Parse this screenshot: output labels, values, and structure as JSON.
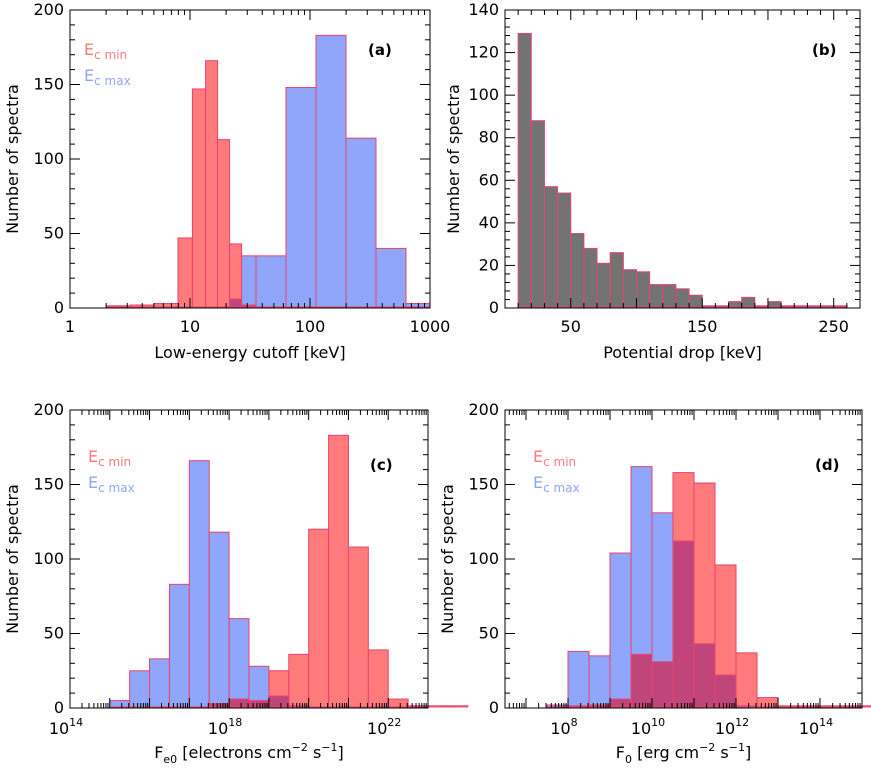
{
  "colors": {
    "red_fill": "#ff7b7b",
    "red_edge": "#e8436f",
    "blue_fill": "#8fa6fa",
    "overlap_fill": "#c0457a",
    "gray_fill": "#737373",
    "axis": "#000000"
  },
  "chart_data": [
    {
      "id": "a",
      "type": "histogram",
      "label": "(a)",
      "xscale": "log",
      "xlim_log10": [
        0,
        3
      ],
      "ylim": [
        0,
        200
      ],
      "xlabel": "Low-energy cutoff [keV]",
      "ylabel": "Number of spectra",
      "xticks": [
        {
          "v": 0,
          "label": "1"
        },
        {
          "v": 1,
          "label": "10"
        },
        {
          "v": 2,
          "label": "100"
        },
        {
          "v": 3,
          "label": "1000"
        }
      ],
      "yticks": [
        {
          "v": 0,
          "label": "0"
        },
        {
          "v": 50,
          "label": "50"
        },
        {
          "v": 100,
          "label": "100"
        },
        {
          "v": 150,
          "label": "150"
        },
        {
          "v": 200,
          "label": "200"
        }
      ],
      "legend": {
        "position": "top-left",
        "entries": [
          {
            "main": "E",
            "sub": "c min",
            "series": 0
          },
          {
            "main": "E",
            "sub": "c max",
            "series": 1
          }
        ]
      },
      "series": [
        {
          "name": "Ec min",
          "color_key": "red",
          "bins": [
            [
              0.3,
              0.5,
              1
            ],
            [
              0.5,
              0.7,
              2
            ],
            [
              0.7,
              0.9,
              3
            ],
            [
              0.9,
              1.02,
              47
            ],
            [
              1.02,
              1.13,
              147
            ],
            [
              1.13,
              1.23,
              166
            ],
            [
              1.23,
              1.33,
              113
            ],
            [
              1.33,
              1.43,
              43
            ],
            [
              1.43,
              1.55,
              2
            ]
          ]
        },
        {
          "name": "Ec max",
          "color_key": "blue",
          "bins": [
            [
              1.33,
              1.43,
              6
            ],
            [
              1.43,
              1.55,
              35
            ],
            [
              1.55,
              1.8,
              35
            ],
            [
              1.8,
              2.05,
              148
            ],
            [
              2.05,
              2.3,
              183
            ],
            [
              2.3,
              2.55,
              114
            ],
            [
              2.55,
              2.8,
              40
            ],
            [
              2.8,
              3.0,
              3
            ]
          ]
        }
      ]
    },
    {
      "id": "b",
      "type": "histogram",
      "label": "(b)",
      "xscale": "linear",
      "xlim": [
        0,
        270
      ],
      "ylim": [
        0,
        140
      ],
      "xlabel": "Potential drop [keV]",
      "ylabel": "Number of spectra",
      "xticks": [
        {
          "v": 50,
          "label": "50"
        },
        {
          "v": 150,
          "label": "150"
        },
        {
          "v": 250,
          "label": "250"
        }
      ],
      "yticks": [
        {
          "v": 0,
          "label": "0"
        },
        {
          "v": 20,
          "label": "20"
        },
        {
          "v": 40,
          "label": "40"
        },
        {
          "v": 60,
          "label": "60"
        },
        {
          "v": 80,
          "label": "80"
        },
        {
          "v": 100,
          "label": "100"
        },
        {
          "v": 120,
          "label": "120"
        },
        {
          "v": 140,
          "label": "140"
        }
      ],
      "series": [
        {
          "name": "Potential drop",
          "color_key": "gray",
          "bin_start": 10,
          "bin_width": 10,
          "values": [
            129,
            88,
            57,
            54,
            35,
            28,
            21,
            26,
            18,
            17,
            11,
            11,
            9,
            6,
            1,
            1,
            3,
            5,
            0,
            3,
            1,
            1,
            1,
            0,
            1
          ]
        }
      ]
    },
    {
      "id": "c",
      "type": "histogram",
      "label": "(c)",
      "xscale": "log",
      "xlim_log10": [
        14,
        23
      ],
      "ylim": [
        0,
        200
      ],
      "xlabel": "F",
      "xlabel_sub": "e0",
      "xlabel_rest": " [electrons cm",
      "xlabel_sup1": "−2",
      "xlabel_mid": " s",
      "xlabel_sup2": "−1",
      "xlabel_end": "]",
      "ylabel": "Number of spectra",
      "xticks": [
        {
          "v": 14,
          "base": "10",
          "exp": "14"
        },
        {
          "v": 18,
          "base": "10",
          "exp": "18"
        },
        {
          "v": 22,
          "base": "10",
          "exp": "22"
        }
      ],
      "yticks": [
        {
          "v": 0,
          "label": "0"
        },
        {
          "v": 50,
          "label": "50"
        },
        {
          "v": 100,
          "label": "100"
        },
        {
          "v": 150,
          "label": "150"
        },
        {
          "v": 200,
          "label": "200"
        }
      ],
      "legend": {
        "position": "top-left",
        "entries": [
          {
            "main": "E",
            "sub": "c min",
            "series": 0
          },
          {
            "main": "E",
            "sub": "c max",
            "series": 1
          }
        ]
      },
      "series": [
        {
          "name": "Ec min",
          "color_key": "red",
          "bin_start": 16.5,
          "bin_width": 0.5,
          "values": [
            0,
            0,
            3,
            6,
            5,
            25,
            36,
            120,
            183,
            108,
            39,
            6,
            1,
            1,
            1
          ]
        },
        {
          "name": "Ec max",
          "color_key": "blue",
          "bin_start": 15,
          "bin_width": 0.5,
          "values": [
            5,
            25,
            33,
            83,
            166,
            118,
            60,
            28,
            8,
            0
          ]
        }
      ]
    },
    {
      "id": "d",
      "type": "histogram",
      "label": "(d)",
      "xscale": "log",
      "xlim_log10": [
        6.5,
        15
      ],
      "ylim": [
        0,
        200
      ],
      "xlabel": "F",
      "xlabel_sub": "0",
      "xlabel_rest": " [erg cm",
      "xlabel_sup1": "−2",
      "xlabel_mid": " s",
      "xlabel_sup2": "−1",
      "xlabel_end": "]",
      "ylabel": "Number of spectra",
      "xticks": [
        {
          "v": 8,
          "base": "10",
          "exp": "8"
        },
        {
          "v": 10,
          "base": "10",
          "exp": "10"
        },
        {
          "v": 12,
          "base": "10",
          "exp": "12"
        },
        {
          "v": 14,
          "base": "10",
          "exp": "14"
        }
      ],
      "yticks": [
        {
          "v": 0,
          "label": "0"
        },
        {
          "v": 50,
          "label": "50"
        },
        {
          "v": 100,
          "label": "100"
        },
        {
          "v": 150,
          "label": "150"
        },
        {
          "v": 200,
          "label": "200"
        }
      ],
      "legend": {
        "position": "top-left",
        "entries": [
          {
            "main": "E",
            "sub": "c min",
            "series": 0
          },
          {
            "main": "E",
            "sub": "c max",
            "series": 1
          }
        ]
      },
      "series": [
        {
          "name": "Ec min",
          "color_key": "red",
          "bin_start": 8,
          "bin_width": 0.5,
          "values": [
            1,
            2,
            6,
            36,
            31,
            158,
            151,
            96,
            37,
            7,
            1,
            1,
            1,
            1,
            1,
            2
          ]
        },
        {
          "name": "Ec max",
          "color_key": "blue",
          "bin_start": 7.5,
          "bin_width": 0.5,
          "values": [
            2,
            38,
            35,
            104,
            162,
            131,
            112,
            43,
            22,
            0
          ]
        }
      ]
    }
  ]
}
